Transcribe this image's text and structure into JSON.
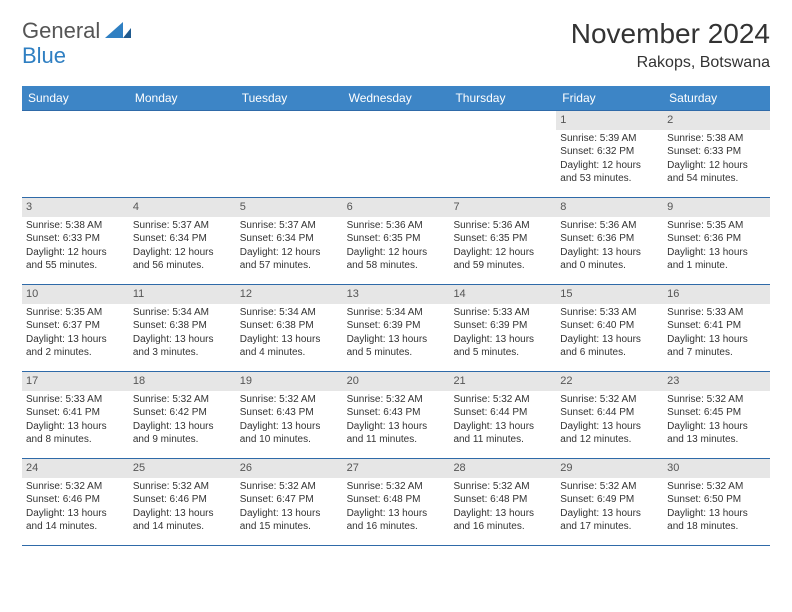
{
  "brand": {
    "name_part1": "General",
    "name_part2": "Blue"
  },
  "header": {
    "month_title": "November 2024",
    "location": "Rakops, Botswana"
  },
  "colors": {
    "header_bg": "#3d85c6",
    "header_text": "#ffffff",
    "daynum_bg": "#e6e6e6",
    "week_border": "#2f6aa8",
    "text": "#333333"
  },
  "weekdays": [
    "Sunday",
    "Monday",
    "Tuesday",
    "Wednesday",
    "Thursday",
    "Friday",
    "Saturday"
  ],
  "weeks": [
    [
      {
        "day": "",
        "sunrise": "",
        "sunset": "",
        "daylight": ""
      },
      {
        "day": "",
        "sunrise": "",
        "sunset": "",
        "daylight": ""
      },
      {
        "day": "",
        "sunrise": "",
        "sunset": "",
        "daylight": ""
      },
      {
        "day": "",
        "sunrise": "",
        "sunset": "",
        "daylight": ""
      },
      {
        "day": "",
        "sunrise": "",
        "sunset": "",
        "daylight": ""
      },
      {
        "day": "1",
        "sunrise": "Sunrise: 5:39 AM",
        "sunset": "Sunset: 6:32 PM",
        "daylight": "Daylight: 12 hours and 53 minutes."
      },
      {
        "day": "2",
        "sunrise": "Sunrise: 5:38 AM",
        "sunset": "Sunset: 6:33 PM",
        "daylight": "Daylight: 12 hours and 54 minutes."
      }
    ],
    [
      {
        "day": "3",
        "sunrise": "Sunrise: 5:38 AM",
        "sunset": "Sunset: 6:33 PM",
        "daylight": "Daylight: 12 hours and 55 minutes."
      },
      {
        "day": "4",
        "sunrise": "Sunrise: 5:37 AM",
        "sunset": "Sunset: 6:34 PM",
        "daylight": "Daylight: 12 hours and 56 minutes."
      },
      {
        "day": "5",
        "sunrise": "Sunrise: 5:37 AM",
        "sunset": "Sunset: 6:34 PM",
        "daylight": "Daylight: 12 hours and 57 minutes."
      },
      {
        "day": "6",
        "sunrise": "Sunrise: 5:36 AM",
        "sunset": "Sunset: 6:35 PM",
        "daylight": "Daylight: 12 hours and 58 minutes."
      },
      {
        "day": "7",
        "sunrise": "Sunrise: 5:36 AM",
        "sunset": "Sunset: 6:35 PM",
        "daylight": "Daylight: 12 hours and 59 minutes."
      },
      {
        "day": "8",
        "sunrise": "Sunrise: 5:36 AM",
        "sunset": "Sunset: 6:36 PM",
        "daylight": "Daylight: 13 hours and 0 minutes."
      },
      {
        "day": "9",
        "sunrise": "Sunrise: 5:35 AM",
        "sunset": "Sunset: 6:36 PM",
        "daylight": "Daylight: 13 hours and 1 minute."
      }
    ],
    [
      {
        "day": "10",
        "sunrise": "Sunrise: 5:35 AM",
        "sunset": "Sunset: 6:37 PM",
        "daylight": "Daylight: 13 hours and 2 minutes."
      },
      {
        "day": "11",
        "sunrise": "Sunrise: 5:34 AM",
        "sunset": "Sunset: 6:38 PM",
        "daylight": "Daylight: 13 hours and 3 minutes."
      },
      {
        "day": "12",
        "sunrise": "Sunrise: 5:34 AM",
        "sunset": "Sunset: 6:38 PM",
        "daylight": "Daylight: 13 hours and 4 minutes."
      },
      {
        "day": "13",
        "sunrise": "Sunrise: 5:34 AM",
        "sunset": "Sunset: 6:39 PM",
        "daylight": "Daylight: 13 hours and 5 minutes."
      },
      {
        "day": "14",
        "sunrise": "Sunrise: 5:33 AM",
        "sunset": "Sunset: 6:39 PM",
        "daylight": "Daylight: 13 hours and 5 minutes."
      },
      {
        "day": "15",
        "sunrise": "Sunrise: 5:33 AM",
        "sunset": "Sunset: 6:40 PM",
        "daylight": "Daylight: 13 hours and 6 minutes."
      },
      {
        "day": "16",
        "sunrise": "Sunrise: 5:33 AM",
        "sunset": "Sunset: 6:41 PM",
        "daylight": "Daylight: 13 hours and 7 minutes."
      }
    ],
    [
      {
        "day": "17",
        "sunrise": "Sunrise: 5:33 AM",
        "sunset": "Sunset: 6:41 PM",
        "daylight": "Daylight: 13 hours and 8 minutes."
      },
      {
        "day": "18",
        "sunrise": "Sunrise: 5:32 AM",
        "sunset": "Sunset: 6:42 PM",
        "daylight": "Daylight: 13 hours and 9 minutes."
      },
      {
        "day": "19",
        "sunrise": "Sunrise: 5:32 AM",
        "sunset": "Sunset: 6:43 PM",
        "daylight": "Daylight: 13 hours and 10 minutes."
      },
      {
        "day": "20",
        "sunrise": "Sunrise: 5:32 AM",
        "sunset": "Sunset: 6:43 PM",
        "daylight": "Daylight: 13 hours and 11 minutes."
      },
      {
        "day": "21",
        "sunrise": "Sunrise: 5:32 AM",
        "sunset": "Sunset: 6:44 PM",
        "daylight": "Daylight: 13 hours and 11 minutes."
      },
      {
        "day": "22",
        "sunrise": "Sunrise: 5:32 AM",
        "sunset": "Sunset: 6:44 PM",
        "daylight": "Daylight: 13 hours and 12 minutes."
      },
      {
        "day": "23",
        "sunrise": "Sunrise: 5:32 AM",
        "sunset": "Sunset: 6:45 PM",
        "daylight": "Daylight: 13 hours and 13 minutes."
      }
    ],
    [
      {
        "day": "24",
        "sunrise": "Sunrise: 5:32 AM",
        "sunset": "Sunset: 6:46 PM",
        "daylight": "Daylight: 13 hours and 14 minutes."
      },
      {
        "day": "25",
        "sunrise": "Sunrise: 5:32 AM",
        "sunset": "Sunset: 6:46 PM",
        "daylight": "Daylight: 13 hours and 14 minutes."
      },
      {
        "day": "26",
        "sunrise": "Sunrise: 5:32 AM",
        "sunset": "Sunset: 6:47 PM",
        "daylight": "Daylight: 13 hours and 15 minutes."
      },
      {
        "day": "27",
        "sunrise": "Sunrise: 5:32 AM",
        "sunset": "Sunset: 6:48 PM",
        "daylight": "Daylight: 13 hours and 16 minutes."
      },
      {
        "day": "28",
        "sunrise": "Sunrise: 5:32 AM",
        "sunset": "Sunset: 6:48 PM",
        "daylight": "Daylight: 13 hours and 16 minutes."
      },
      {
        "day": "29",
        "sunrise": "Sunrise: 5:32 AM",
        "sunset": "Sunset: 6:49 PM",
        "daylight": "Daylight: 13 hours and 17 minutes."
      },
      {
        "day": "30",
        "sunrise": "Sunrise: 5:32 AM",
        "sunset": "Sunset: 6:50 PM",
        "daylight": "Daylight: 13 hours and 18 minutes."
      }
    ]
  ]
}
